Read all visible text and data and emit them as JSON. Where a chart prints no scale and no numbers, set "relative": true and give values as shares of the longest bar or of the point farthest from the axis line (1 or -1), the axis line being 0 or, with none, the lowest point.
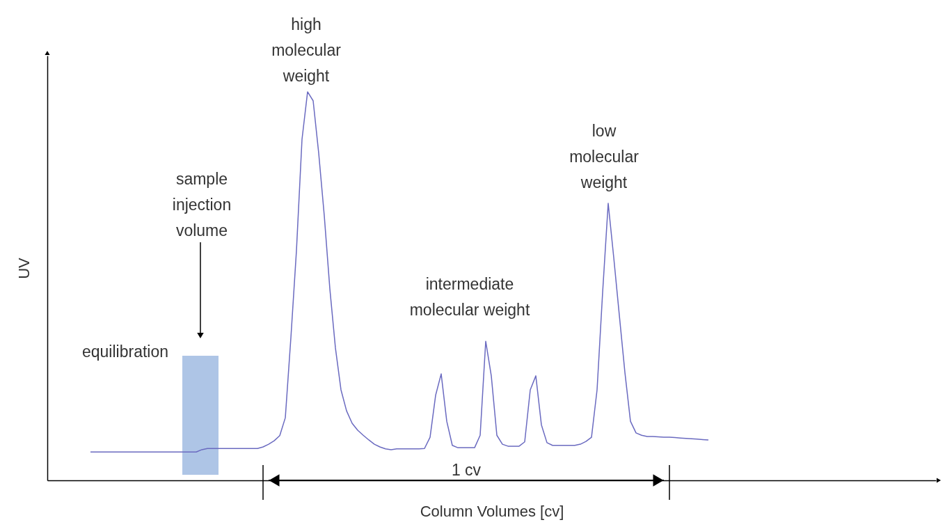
{
  "chart_data": {
    "type": "line",
    "relative": true,
    "xlabel": "Column Volumes [cv]",
    "ylabel": "UV",
    "categories": [
      null,
      null,
      null,
      null,
      null,
      null,
      null,
      null,
      null,
      null,
      null,
      null,
      null,
      null,
      null,
      null,
      null,
      null,
      null,
      null,
      null,
      null,
      null,
      null,
      null,
      null,
      null,
      null,
      null,
      null,
      null,
      null,
      null,
      null,
      null,
      null,
      null,
      null,
      null,
      null,
      null,
      null,
      null,
      null,
      null,
      null,
      null,
      null,
      null,
      null,
      null,
      null,
      null,
      null,
      null,
      null,
      null,
      null,
      null,
      null,
      null,
      null,
      null,
      null,
      null,
      null,
      null,
      null,
      null,
      null,
      null,
      null,
      null,
      null,
      null,
      null,
      null,
      null,
      null,
      null,
      null,
      null,
      null,
      null,
      null,
      null,
      null,
      null,
      null,
      null,
      null,
      null,
      null,
      null,
      null,
      null,
      null,
      null,
      null,
      null,
      null,
      null,
      null,
      null,
      null,
      null,
      null,
      null,
      null,
      null,
      null,
      null
    ],
    "series": [
      {
        "color": "#6a6ac0",
        "values": [
          0.073,
          0.073,
          0.073,
          0.073,
          0.073,
          0.073,
          0.073,
          0.073,
          0.073,
          0.073,
          0.073,
          0.073,
          0.073,
          0.073,
          0.073,
          0.073,
          0.073,
          0.073,
          0.073,
          0.073,
          0.079,
          0.082,
          0.082,
          0.082,
          0.082,
          0.082,
          0.082,
          0.082,
          0.082,
          0.082,
          0.082,
          0.086,
          0.093,
          0.102,
          0.115,
          0.161,
          0.367,
          0.591,
          0.878,
          1.0,
          0.977,
          0.842,
          0.681,
          0.493,
          0.341,
          0.233,
          0.179,
          0.147,
          0.129,
          0.116,
          0.104,
          0.093,
          0.086,
          0.081,
          0.079,
          0.081,
          0.081,
          0.081,
          0.081,
          0.081,
          0.082,
          0.111,
          0.219,
          0.274,
          0.152,
          0.09,
          0.084,
          0.084,
          0.084,
          0.084,
          0.116,
          0.358,
          0.269,
          0.116,
          0.093,
          0.088,
          0.088,
          0.088,
          0.099,
          0.233,
          0.269,
          0.143,
          0.097,
          0.09,
          0.09,
          0.09,
          0.09,
          0.09,
          0.093,
          0.1,
          0.111,
          0.233,
          0.484,
          0.713,
          0.573,
          0.425,
          0.278,
          0.152,
          0.122,
          0.116,
          0.113,
          0.113,
          0.112,
          0.111,
          0.111,
          0.11,
          0.109,
          0.108,
          0.107,
          0.106,
          0.105,
          0.104
        ]
      }
    ],
    "annotations": [
      "high\nmolecular\nweight",
      "sample\ninjection\nvolume",
      "equilibration",
      "intermediate\nmolecular weight",
      "low\nmolecular\nweight",
      "1 cv"
    ],
    "grid": false,
    "marker": "none"
  }
}
